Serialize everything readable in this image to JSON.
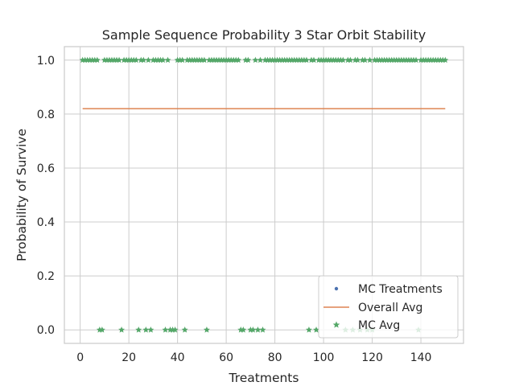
{
  "chart_data": {
    "type": "scatter",
    "title": "Sample Sequence Probability 3 Star Orbit Stability",
    "xlabel": "Treatments",
    "ylabel": "Probability of Survive",
    "xlim": [
      -6.5,
      157.5
    ],
    "ylim": [
      -0.05,
      1.05
    ],
    "xticks": [
      "0",
      "20",
      "40",
      "60",
      "80",
      "100",
      "120",
      "140"
    ],
    "yticks": [
      "0.0",
      "0.2",
      "0.4",
      "0.6",
      "0.8",
      "1.0"
    ],
    "grid": true,
    "legend_position": "lower-right",
    "colors": {
      "mc_treatments": "#4c72b0",
      "overall_avg": "#dd8452",
      "mc_avg": "#55a868"
    },
    "series": [
      {
        "name": "MC Treatments",
        "marker": "dot",
        "x": [
          1,
          2,
          3,
          4,
          5,
          6,
          7,
          8,
          9,
          10,
          11,
          12,
          13,
          14,
          15,
          16,
          17,
          18,
          19,
          20,
          21,
          22,
          23,
          24,
          25,
          26,
          27,
          28,
          29,
          30,
          31,
          32,
          33,
          34,
          35,
          36,
          37,
          38,
          39,
          40,
          41,
          42,
          43,
          44,
          45,
          46,
          47,
          48,
          49,
          50,
          51,
          52,
          53,
          54,
          55,
          56,
          57,
          58,
          59,
          60,
          61,
          62,
          63,
          64,
          65,
          66,
          67,
          68,
          69,
          70,
          71,
          72,
          73,
          74,
          75,
          76,
          77,
          78,
          79,
          80,
          81,
          82,
          83,
          84,
          85,
          86,
          87,
          88,
          89,
          90,
          91,
          92,
          93,
          94,
          95,
          96,
          97,
          98,
          99,
          100,
          101,
          102,
          103,
          104,
          105,
          106,
          107,
          108,
          109,
          110,
          111,
          112,
          113,
          114,
          115,
          116,
          117,
          118,
          119,
          120,
          121,
          122,
          123,
          124,
          125,
          126,
          127,
          128,
          129,
          130,
          131,
          132,
          133,
          134,
          135,
          136,
          137,
          138,
          139,
          140,
          141,
          142,
          143,
          144,
          145,
          146,
          147,
          148,
          149,
          150
        ],
        "y": [
          1,
          1,
          1,
          1,
          1,
          1,
          1,
          0,
          0,
          1,
          1,
          1,
          1,
          1,
          1,
          1,
          0,
          1,
          1,
          1,
          1,
          1,
          1,
          0,
          1,
          1,
          0,
          1,
          0,
          1,
          1,
          1,
          1,
          1,
          0,
          1,
          0,
          0,
          0,
          1,
          1,
          1,
          0,
          1,
          1,
          1,
          1,
          1,
          1,
          1,
          1,
          0,
          1,
          1,
          1,
          1,
          1,
          1,
          1,
          1,
          1,
          1,
          1,
          1,
          1,
          0,
          0,
          1,
          1,
          0,
          0,
          1,
          0,
          1,
          0,
          1,
          1,
          1,
          1,
          1,
          1,
          1,
          1,
          1,
          1,
          1,
          1,
          1,
          1,
          1,
          1,
          1,
          1,
          0,
          1,
          1,
          0,
          1,
          1,
          1,
          1,
          1,
          1,
          1,
          1,
          1,
          1,
          1,
          0,
          1,
          1,
          0,
          1,
          1,
          0,
          1,
          1,
          0,
          1,
          0,
          1,
          1,
          1,
          1,
          1,
          1,
          1,
          1,
          1,
          1,
          1,
          1,
          1,
          1,
          1,
          1,
          1,
          1,
          0,
          1,
          1,
          1,
          1,
          1,
          1,
          1,
          1,
          1,
          1,
          1
        ]
      },
      {
        "name": "Overall Avg",
        "marker": "line",
        "x": [
          1,
          150
        ],
        "y": [
          0.82,
          0.82
        ]
      },
      {
        "name": "MC Avg",
        "marker": "star",
        "x": [
          1,
          2,
          3,
          4,
          5,
          6,
          7,
          8,
          9,
          10,
          11,
          12,
          13,
          14,
          15,
          16,
          17,
          18,
          19,
          20,
          21,
          22,
          23,
          24,
          25,
          26,
          27,
          28,
          29,
          30,
          31,
          32,
          33,
          34,
          35,
          36,
          37,
          38,
          39,
          40,
          41,
          42,
          43,
          44,
          45,
          46,
          47,
          48,
          49,
          50,
          51,
          52,
          53,
          54,
          55,
          56,
          57,
          58,
          59,
          60,
          61,
          62,
          63,
          64,
          65,
          66,
          67,
          68,
          69,
          70,
          71,
          72,
          73,
          74,
          75,
          76,
          77,
          78,
          79,
          80,
          81,
          82,
          83,
          84,
          85,
          86,
          87,
          88,
          89,
          90,
          91,
          92,
          93,
          94,
          95,
          96,
          97,
          98,
          99,
          100,
          101,
          102,
          103,
          104,
          105,
          106,
          107,
          108,
          109,
          110,
          111,
          112,
          113,
          114,
          115,
          116,
          117,
          118,
          119,
          120,
          121,
          122,
          123,
          124,
          125,
          126,
          127,
          128,
          129,
          130,
          131,
          132,
          133,
          134,
          135,
          136,
          137,
          138,
          139,
          140,
          141,
          142,
          143,
          144,
          145,
          146,
          147,
          148,
          149,
          150
        ],
        "y": [
          1,
          1,
          1,
          1,
          1,
          1,
          1,
          0,
          0,
          1,
          1,
          1,
          1,
          1,
          1,
          1,
          0,
          1,
          1,
          1,
          1,
          1,
          1,
          0,
          1,
          1,
          0,
          1,
          0,
          1,
          1,
          1,
          1,
          1,
          0,
          1,
          0,
          0,
          0,
          1,
          1,
          1,
          0,
          1,
          1,
          1,
          1,
          1,
          1,
          1,
          1,
          0,
          1,
          1,
          1,
          1,
          1,
          1,
          1,
          1,
          1,
          1,
          1,
          1,
          1,
          0,
          0,
          1,
          1,
          0,
          0,
          1,
          0,
          1,
          0,
          1,
          1,
          1,
          1,
          1,
          1,
          1,
          1,
          1,
          1,
          1,
          1,
          1,
          1,
          1,
          1,
          1,
          1,
          0,
          1,
          1,
          0,
          1,
          1,
          1,
          1,
          1,
          1,
          1,
          1,
          1,
          1,
          1,
          0,
          1,
          1,
          0,
          1,
          1,
          0,
          1,
          1,
          0,
          1,
          0,
          1,
          1,
          1,
          1,
          1,
          1,
          1,
          1,
          1,
          1,
          1,
          1,
          1,
          1,
          1,
          1,
          1,
          1,
          0,
          1,
          1,
          1,
          1,
          1,
          1,
          1,
          1,
          1,
          1,
          1
        ]
      }
    ]
  }
}
